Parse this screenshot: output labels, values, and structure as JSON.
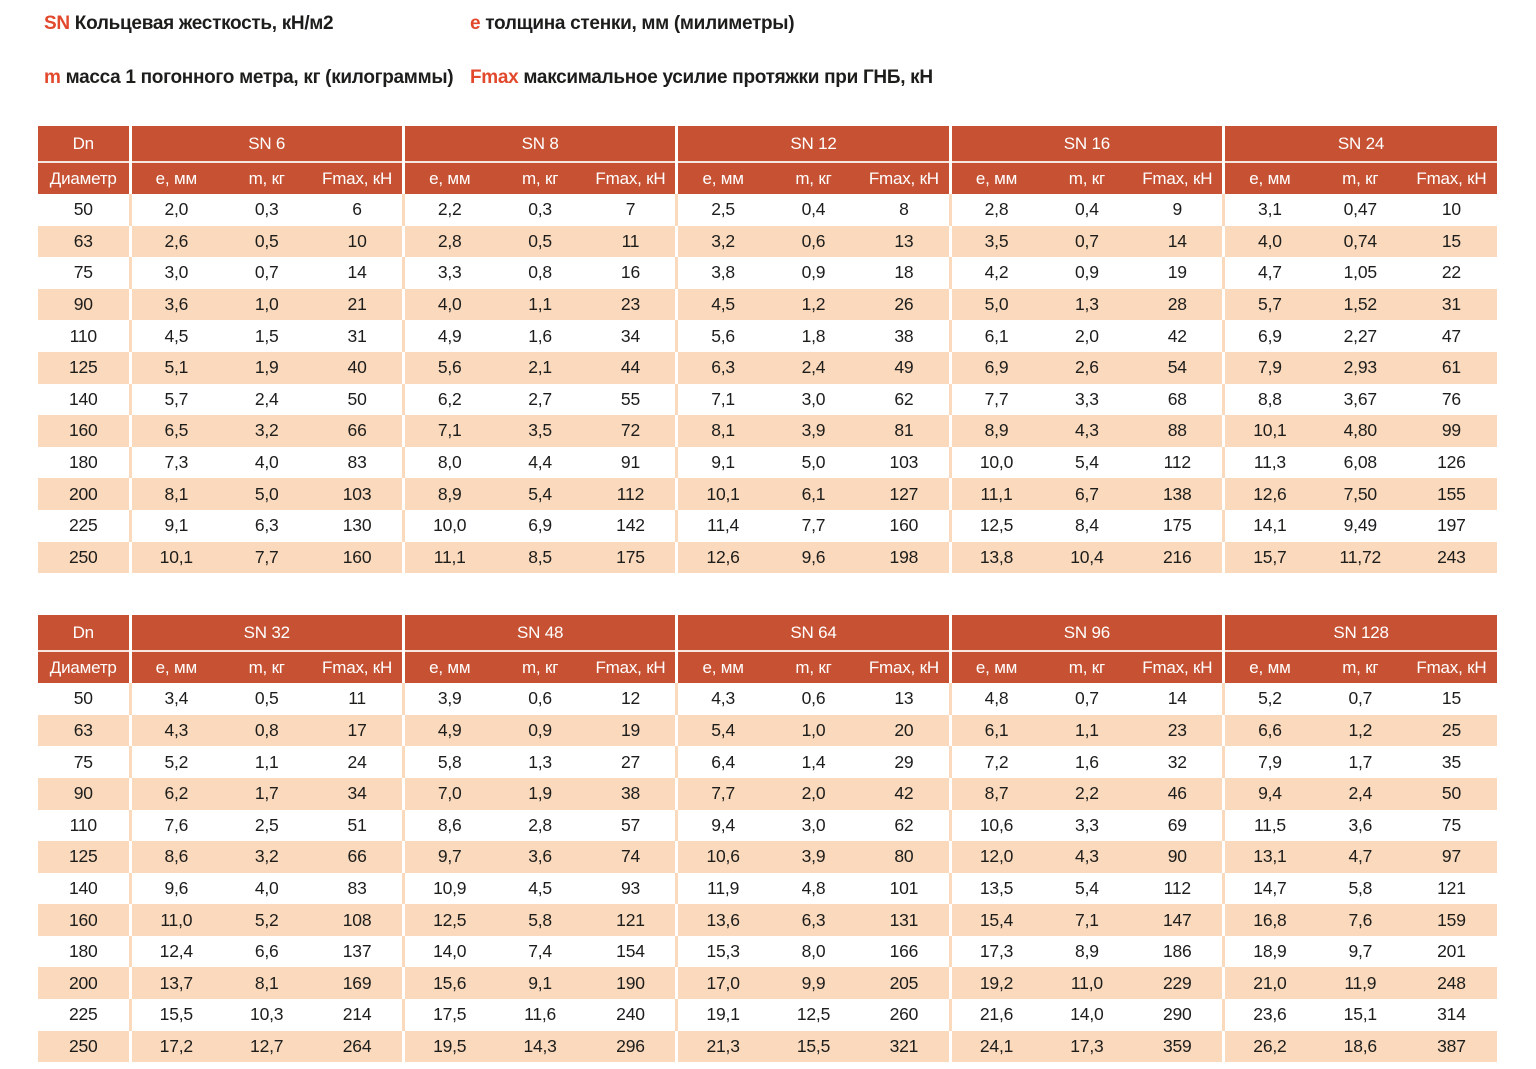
{
  "colors": {
    "header_bg": "#c65233",
    "row_alt_bg": "#fad9bd",
    "accent_text": "#e2492c",
    "body_text": "#1d1d1b",
    "header_text": "#ffffff"
  },
  "legend": {
    "items": [
      {
        "key": "SN",
        "text": "Кольцевая жесткость,  кН/м2"
      },
      {
        "key": "e",
        "text": "толщина стенки, мм (милиметры)"
      },
      {
        "key": "m",
        "text": "масса 1 погонного метра, кг (килограммы)"
      },
      {
        "key": "Fmax",
        "text": "максимальное усилие протяжки при ГНБ, кН"
      }
    ]
  },
  "tables": [
    {
      "dn_header_line1": "Dn",
      "dn_header_line2": "Диаметр",
      "groups": [
        "SN 6",
        "SN 8",
        "SN 12",
        "SN 16",
        "SN 24"
      ],
      "sub_headers": [
        "e, мм",
        "m, кг",
        "Fmax, кН"
      ],
      "rows": [
        {
          "dn": "50",
          "cells": [
            "2,0",
            "0,3",
            "6",
            "2,2",
            "0,3",
            "7",
            "2,5",
            "0,4",
            "8",
            "2,8",
            "0,4",
            "9",
            "3,1",
            "0,47",
            "10"
          ]
        },
        {
          "dn": "63",
          "cells": [
            "2,6",
            "0,5",
            "10",
            "2,8",
            "0,5",
            "11",
            "3,2",
            "0,6",
            "13",
            "3,5",
            "0,7",
            "14",
            "4,0",
            "0,74",
            "15"
          ]
        },
        {
          "dn": "75",
          "cells": [
            "3,0",
            "0,7",
            "14",
            "3,3",
            "0,8",
            "16",
            "3,8",
            "0,9",
            "18",
            "4,2",
            "0,9",
            "19",
            "4,7",
            "1,05",
            "22"
          ]
        },
        {
          "dn": "90",
          "cells": [
            "3,6",
            "1,0",
            "21",
            "4,0",
            "1,1",
            "23",
            "4,5",
            "1,2",
            "26",
            "5,0",
            "1,3",
            "28",
            "5,7",
            "1,52",
            "31"
          ]
        },
        {
          "dn": "110",
          "cells": [
            "4,5",
            "1,5",
            "31",
            "4,9",
            "1,6",
            "34",
            "5,6",
            "1,8",
            "38",
            "6,1",
            "2,0",
            "42",
            "6,9",
            "2,27",
            "47"
          ]
        },
        {
          "dn": "125",
          "cells": [
            "5,1",
            "1,9",
            "40",
            "5,6",
            "2,1",
            "44",
            "6,3",
            "2,4",
            "49",
            "6,9",
            "2,6",
            "54",
            "7,9",
            "2,93",
            "61"
          ]
        },
        {
          "dn": "140",
          "cells": [
            "5,7",
            "2,4",
            "50",
            "6,2",
            "2,7",
            "55",
            "7,1",
            "3,0",
            "62",
            "7,7",
            "3,3",
            "68",
            "8,8",
            "3,67",
            "76"
          ]
        },
        {
          "dn": "160",
          "cells": [
            "6,5",
            "3,2",
            "66",
            "7,1",
            "3,5",
            "72",
            "8,1",
            "3,9",
            "81",
            "8,9",
            "4,3",
            "88",
            "10,1",
            "4,80",
            "99"
          ]
        },
        {
          "dn": "180",
          "cells": [
            "7,3",
            "4,0",
            "83",
            "8,0",
            "4,4",
            "91",
            "9,1",
            "5,0",
            "103",
            "10,0",
            "5,4",
            "112",
            "11,3",
            "6,08",
            "126"
          ]
        },
        {
          "dn": "200",
          "cells": [
            "8,1",
            "5,0",
            "103",
            "8,9",
            "5,4",
            "112",
            "10,1",
            "6,1",
            "127",
            "11,1",
            "6,7",
            "138",
            "12,6",
            "7,50",
            "155"
          ]
        },
        {
          "dn": "225",
          "cells": [
            "9,1",
            "6,3",
            "130",
            "10,0",
            "6,9",
            "142",
            "11,4",
            "7,7",
            "160",
            "12,5",
            "8,4",
            "175",
            "14,1",
            "9,49",
            "197"
          ]
        },
        {
          "dn": "250",
          "cells": [
            "10,1",
            "7,7",
            "160",
            "11,1",
            "8,5",
            "175",
            "12,6",
            "9,6",
            "198",
            "13,8",
            "10,4",
            "216",
            "15,7",
            "11,72",
            "243"
          ]
        }
      ]
    },
    {
      "dn_header_line1": "Dn",
      "dn_header_line2": "Диаметр",
      "groups": [
        "SN 32",
        "SN 48",
        "SN 64",
        "SN 96",
        "SN 128"
      ],
      "sub_headers": [
        "e, мм",
        "m, кг",
        "Fmax, кН"
      ],
      "rows": [
        {
          "dn": "50",
          "cells": [
            "3,4",
            "0,5",
            "11",
            "3,9",
            "0,6",
            "12",
            "4,3",
            "0,6",
            "13",
            "4,8",
            "0,7",
            "14",
            "5,2",
            "0,7",
            "15"
          ]
        },
        {
          "dn": "63",
          "cells": [
            "4,3",
            "0,8",
            "17",
            "4,9",
            "0,9",
            "19",
            "5,4",
            "1,0",
            "20",
            "6,1",
            "1,1",
            "23",
            "6,6",
            "1,2",
            "25"
          ]
        },
        {
          "dn": "75",
          "cells": [
            "5,2",
            "1,1",
            "24",
            "5,8",
            "1,3",
            "27",
            "6,4",
            "1,4",
            "29",
            "7,2",
            "1,6",
            "32",
            "7,9",
            "1,7",
            "35"
          ]
        },
        {
          "dn": "90",
          "cells": [
            "6,2",
            "1,7",
            "34",
            "7,0",
            "1,9",
            "38",
            "7,7",
            "2,0",
            "42",
            "8,7",
            "2,2",
            "46",
            "9,4",
            "2,4",
            "50"
          ]
        },
        {
          "dn": "110",
          "cells": [
            "7,6",
            "2,5",
            "51",
            "8,6",
            "2,8",
            "57",
            "9,4",
            "3,0",
            "62",
            "10,6",
            "3,3",
            "69",
            "11,5",
            "3,6",
            "75"
          ]
        },
        {
          "dn": "125",
          "cells": [
            "8,6",
            "3,2",
            "66",
            "9,7",
            "3,6",
            "74",
            "10,6",
            "3,9",
            "80",
            "12,0",
            "4,3",
            "90",
            "13,1",
            "4,7",
            "97"
          ]
        },
        {
          "dn": "140",
          "cells": [
            "9,6",
            "4,0",
            "83",
            "10,9",
            "4,5",
            "93",
            "11,9",
            "4,8",
            "101",
            "13,5",
            "5,4",
            "112",
            "14,7",
            "5,8",
            "121"
          ]
        },
        {
          "dn": "160",
          "cells": [
            "11,0",
            "5,2",
            "108",
            "12,5",
            "5,8",
            "121",
            "13,6",
            "6,3",
            "131",
            "15,4",
            "7,1",
            "147",
            "16,8",
            "7,6",
            "159"
          ]
        },
        {
          "dn": "180",
          "cells": [
            "12,4",
            "6,6",
            "137",
            "14,0",
            "7,4",
            "154",
            "15,3",
            "8,0",
            "166",
            "17,3",
            "8,9",
            "186",
            "18,9",
            "9,7",
            "201"
          ]
        },
        {
          "dn": "200",
          "cells": [
            "13,7",
            "8,1",
            "169",
            "15,6",
            "9,1",
            "190",
            "17,0",
            "9,9",
            "205",
            "19,2",
            "11,0",
            "229",
            "21,0",
            "11,9",
            "248"
          ]
        },
        {
          "dn": "225",
          "cells": [
            "15,5",
            "10,3",
            "214",
            "17,5",
            "11,6",
            "240",
            "19,1",
            "12,5",
            "260",
            "21,6",
            "14,0",
            "290",
            "23,6",
            "15,1",
            "314"
          ]
        },
        {
          "dn": "250",
          "cells": [
            "17,2",
            "12,7",
            "264",
            "19,5",
            "14,3",
            "296",
            "21,3",
            "15,5",
            "321",
            "24,1",
            "17,3",
            "359",
            "26,2",
            "18,6",
            "387"
          ]
        }
      ]
    }
  ]
}
